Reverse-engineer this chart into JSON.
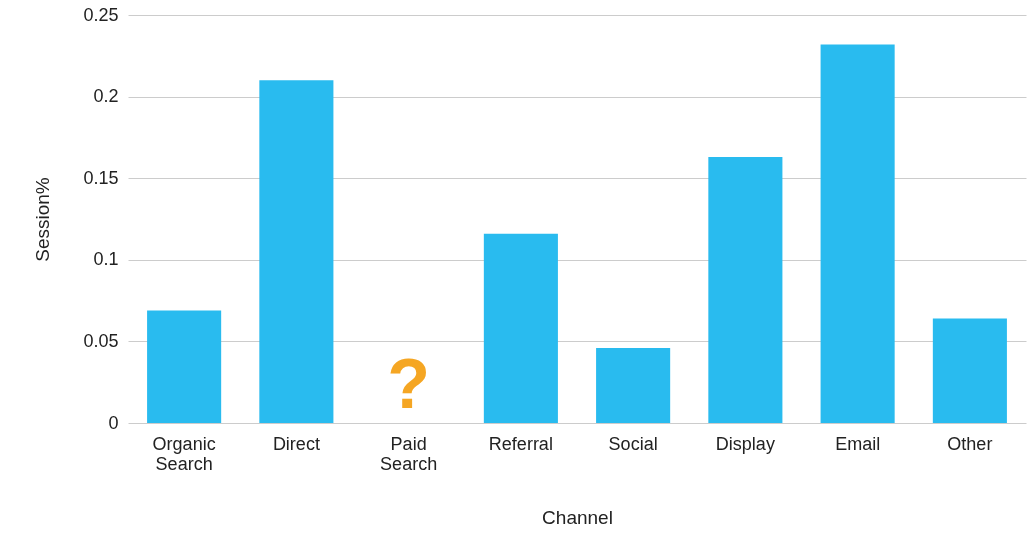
{
  "chart_data": {
    "type": "bar",
    "xlabel": "Channel",
    "ylabel": "Session%",
    "categories": [
      "Organic Search",
      "Direct",
      "Paid Search",
      "Referral",
      "Social",
      "Display",
      "Email",
      "Other"
    ],
    "values": [
      0.069,
      0.21,
      null,
      0.116,
      0.046,
      0.163,
      0.232,
      0.064
    ],
    "color": "#29bbef",
    "ylim": [
      0,
      0.25
    ],
    "yticks": [
      0,
      0.05,
      0.1,
      0.15,
      0.2,
      0.25
    ],
    "grid": "y",
    "annotations": [
      "?"
    ]
  }
}
